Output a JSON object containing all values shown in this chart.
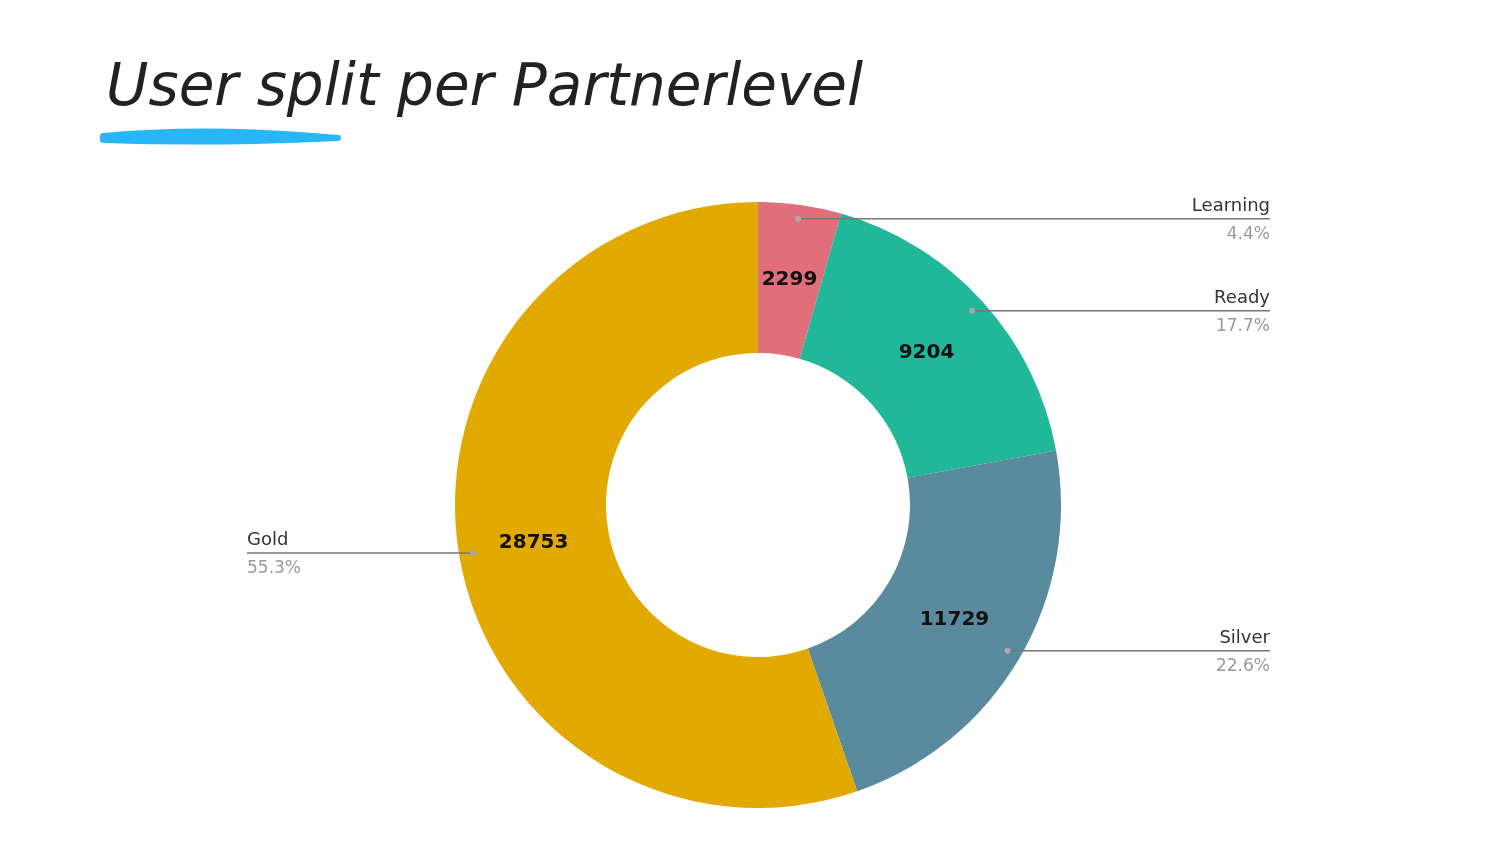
{
  "chart_data": {
    "type": "donut",
    "title": "User split per Partnerlevel",
    "categories": [
      "Learning",
      "Ready",
      "Silver",
      "Gold"
    ],
    "values": [
      2299,
      9204,
      11729,
      28753
    ],
    "colors": [
      "#e06f7a",
      "#21b899",
      "#5a8a9e",
      "#e2aa00"
    ],
    "data_labels": true,
    "annotations": [
      {
        "text": "4.4%",
        "x": "Learning"
      },
      {
        "text": "17.7%",
        "x": "Ready"
      },
      {
        "text": "22.6%",
        "x": "Silver"
      },
      {
        "text": "55.3%",
        "x": "Gold"
      }
    ]
  }
}
